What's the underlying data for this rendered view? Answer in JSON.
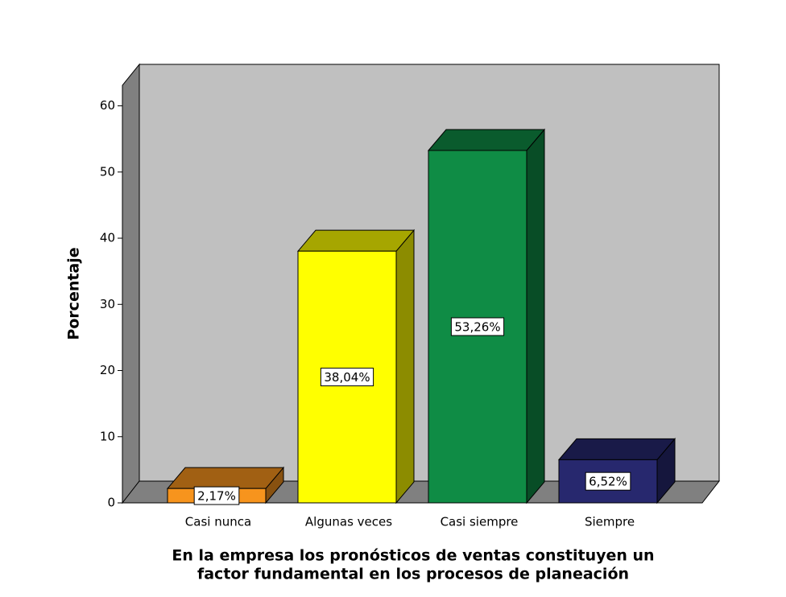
{
  "chart_data": {
    "type": "bar3d",
    "y_label": "Porcentaje",
    "x_label": [
      "En la empresa los pronósticos de ventas constituyen un",
      "factor fundamental en los procesos de planeación"
    ],
    "categories": [
      "Casi nunca",
      "Algunas veces",
      "Casi siempre",
      "Siempre"
    ],
    "values": [
      2.17,
      38.04,
      53.26,
      6.52
    ],
    "value_labels": [
      "2,17%",
      "38,04%",
      "53,26%",
      "6,52%"
    ],
    "colors": [
      "#f7941d",
      "#ffff00",
      "#0f8c45",
      "#27286e"
    ],
    "ylim": [
      0,
      62.5
    ],
    "yticks": [
      0,
      10,
      20,
      30,
      40,
      50,
      60
    ]
  }
}
